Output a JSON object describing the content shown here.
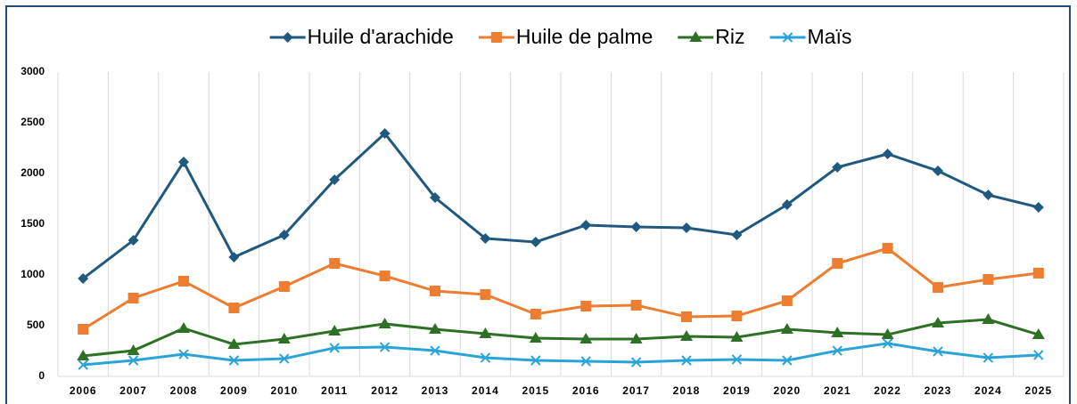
{
  "chart_data": {
    "type": "line",
    "categories": [
      "2006",
      "2007",
      "2008",
      "2009",
      "2010",
      "2011",
      "2012",
      "2013",
      "2014",
      "2015",
      "2016",
      "2017",
      "2018",
      "2019",
      "2020",
      "2021",
      "2022",
      "2023",
      "2024",
      "2025"
    ],
    "series": [
      {
        "name": "Huile d'arachide",
        "color": "#1f5a7e",
        "values": [
          965,
          1342,
          2114,
          1175,
          1395,
          1939,
          2395,
          1763,
          1360,
          1325,
          1491,
          1474,
          1465,
          1395,
          1693,
          2061,
          2193,
          2026,
          1789,
          1667
        ]
      },
      {
        "name": "Huile de palme",
        "color": "#ed7d31",
        "values": [
          465,
          772,
          939,
          675,
          886,
          1114,
          991,
          842,
          807,
          614,
          693,
          702,
          588,
          596,
          746,
          1114,
          1263,
          877,
          956,
          1018
        ]
      },
      {
        "name": "Riz",
        "color": "#2e7025",
        "values": [
          202,
          254,
          474,
          316,
          368,
          447,
          518,
          465,
          421,
          377,
          368,
          368,
          395,
          386,
          465,
          430,
          412,
          526,
          561,
          412
        ]
      },
      {
        "name": "Maïs",
        "color": "#2aa3d8",
        "values": [
          114,
          158,
          219,
          158,
          175,
          281,
          289,
          254,
          184,
          158,
          149,
          140,
          158,
          167,
          158,
          254,
          325,
          246,
          184,
          211
        ]
      }
    ],
    "ylim": [
      0,
      3000
    ],
    "yticks": [
      0,
      500,
      1000,
      1500,
      2000,
      2500,
      3000
    ],
    "grid": true,
    "legend": "top"
  }
}
